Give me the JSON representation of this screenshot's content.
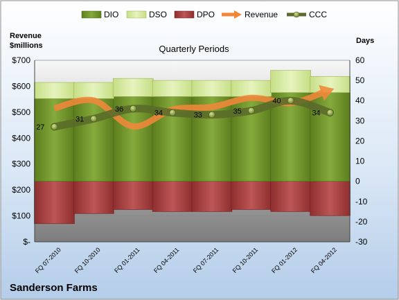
{
  "chart_data": {
    "type": "bar",
    "title": "Quarterly Periods",
    "company": "Sanderson Farms",
    "y_left_label_line1": "Revenue",
    "y_left_label_line2": "$millions",
    "y_right_label": "Days",
    "y_left_range": [
      0,
      700
    ],
    "y_right_range": [
      -30,
      60
    ],
    "y_left_ticks": [
      "$-",
      "$100",
      "$200",
      "$300",
      "$400",
      "$500",
      "$600",
      "$700"
    ],
    "y_right_ticks": [
      "-30",
      "-20",
      "-10",
      "0",
      "10",
      "20",
      "30",
      "40",
      "50",
      "60"
    ],
    "grid": true,
    "legend_position": "top",
    "categories": [
      "FQ 07-2010",
      "FQ 10-2010",
      "FQ 01-2011",
      "FQ 04-2011",
      "FQ 07-2011",
      "FQ 10-2011",
      "FQ 01-2012",
      "FQ 04-2012"
    ],
    "series": [
      {
        "name": "DIO",
        "axis": "right",
        "color": "#6b8e23",
        "values": [
          41,
          41,
          42,
          42,
          42,
          42,
          44,
          44
        ]
      },
      {
        "name": "DSO",
        "axis": "right",
        "color": "#d8ec9f",
        "values": [
          8,
          8,
          9,
          8,
          8,
          8,
          11,
          8
        ]
      },
      {
        "name": "DPO",
        "axis": "right",
        "color": "#9e3b3b",
        "values": [
          -21,
          -16,
          -14,
          -15,
          -15,
          -14,
          -15,
          -17
        ]
      },
      {
        "name": "Revenue",
        "axis": "left",
        "color": "#f0883a",
        "values": [
          515,
          545,
          445,
          510,
          520,
          555,
          535,
          585
        ]
      },
      {
        "name": "CCC",
        "axis": "right",
        "color": "#5a6b2a",
        "values": [
          27,
          31,
          36,
          34,
          33,
          35,
          40,
          34
        ]
      }
    ],
    "ccc_labels": [
      "27",
      "31",
      "36",
      "34",
      "33",
      "35",
      "40",
      "34"
    ]
  }
}
